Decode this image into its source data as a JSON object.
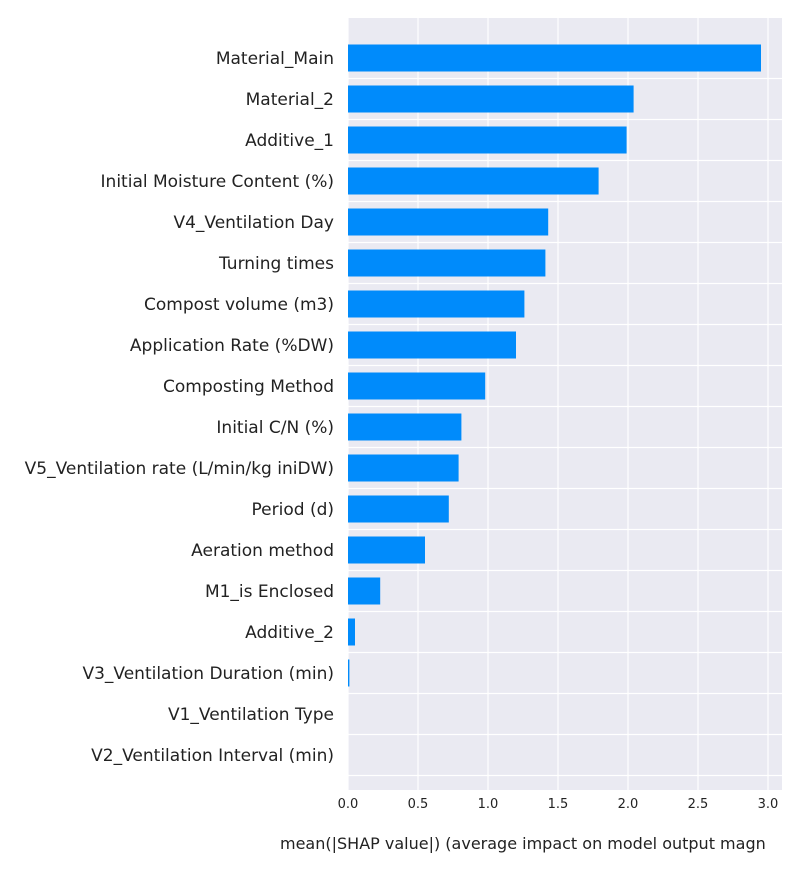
{
  "chart_data": {
    "type": "bar",
    "orientation": "horizontal",
    "categories": [
      "Material_Main",
      "Material_2",
      "Additive_1",
      "Initial Moisture Content (%)",
      "V4_Ventilation Day",
      "Turning times",
      "Compost volume (m3)",
      "Application Rate (%DW)",
      "Composting Method",
      "Initial C/N (%)",
      "V5_Ventilation rate (L/min/kg iniDW)",
      "Period (d)",
      "Aeration method",
      "M1_is Enclosed",
      "Additive_2",
      "V3_Ventilation Duration (min)",
      "V1_Ventilation Type",
      "V2_Ventilation Interval (min)"
    ],
    "values": [
      2.95,
      2.04,
      1.99,
      1.79,
      1.43,
      1.41,
      1.26,
      1.2,
      0.98,
      0.81,
      0.79,
      0.72,
      0.55,
      0.23,
      0.05,
      0.01,
      0.0,
      0.0
    ],
    "xlabel": "mean(|SHAP value|) (average impact on model output magn",
    "xlim": [
      0,
      3.1
    ],
    "xticks": [
      "0.0",
      "0.5",
      "1.0",
      "1.5",
      "2.0",
      "2.5",
      "3.0"
    ],
    "grid": true,
    "bar_color": "#008bfb",
    "background_color": "#eaeaf2"
  }
}
